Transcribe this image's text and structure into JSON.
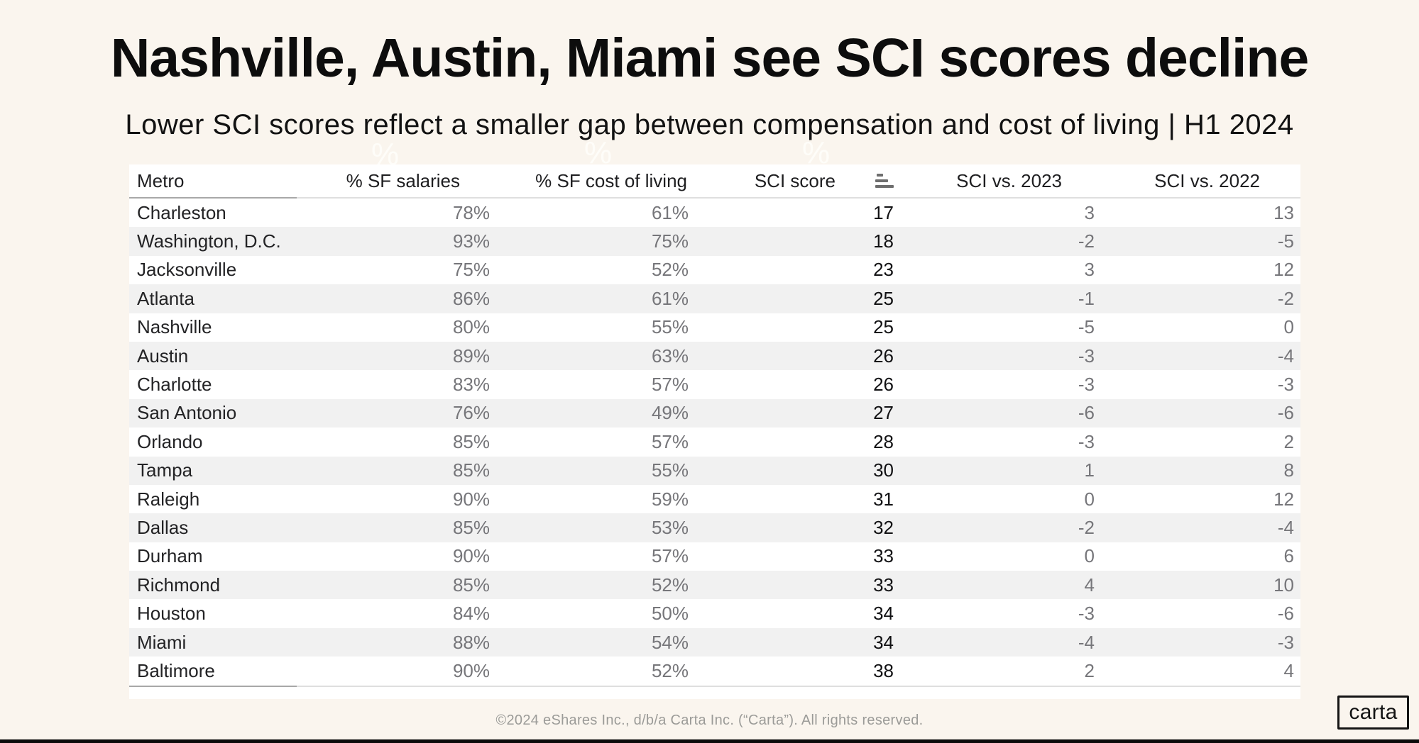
{
  "slide": {
    "title": "Nashville, Austin, Miami see SCI scores decline",
    "subtitle": "Lower SCI scores reflect a smaller gap between compensation and cost of living | H1 2024",
    "footer": "©2024 eShares Inc., d/b/a Carta Inc. (“Carta”). All rights reserved.",
    "logo_text": "carta",
    "watermarks": [
      "%",
      "%",
      "%"
    ]
  },
  "colors": {
    "background": "#FAF5EE",
    "table_background": "#FFFFFF",
    "row_stripe": "#F1F1F1",
    "text_dark": "#232325",
    "text_gray": "#76767A",
    "footer_gray": "#9B9B98",
    "divider_dark": "#A8A8A8",
    "divider_light": "#DFDFDF",
    "sort_icon": "#6E6E6E",
    "bottom_bar": "#0A0A0A"
  },
  "chart_data": {
    "type": "table",
    "title": "Nashville, Austin, Miami see SCI scores decline",
    "subtitle": "Lower SCI scores reflect a smaller gap between compensation and cost of living | H1 2024",
    "columns": [
      "Metro",
      "% SF salaries",
      "% SF cost of living",
      "SCI score",
      "SCI vs. 2023",
      "SCI vs. 2022"
    ],
    "column_keys": [
      "metro",
      "sf_salaries",
      "sf_cost_of_living",
      "sci_score",
      "sci_vs_2023",
      "sci_vs_2022"
    ],
    "sort": {
      "column": "SCI score",
      "direction": "ascending"
    },
    "rows": [
      {
        "metro": "Charleston",
        "sf_salaries": "78%",
        "sf_cost_of_living": "61%",
        "sci_score": 17,
        "sci_vs_2023": 3,
        "sci_vs_2022": 13
      },
      {
        "metro": "Washington, D.C.",
        "sf_salaries": "93%",
        "sf_cost_of_living": "75%",
        "sci_score": 18,
        "sci_vs_2023": -2,
        "sci_vs_2022": -5
      },
      {
        "metro": "Jacksonville",
        "sf_salaries": "75%",
        "sf_cost_of_living": "52%",
        "sci_score": 23,
        "sci_vs_2023": 3,
        "sci_vs_2022": 12
      },
      {
        "metro": "Atlanta",
        "sf_salaries": "86%",
        "sf_cost_of_living": "61%",
        "sci_score": 25,
        "sci_vs_2023": -1,
        "sci_vs_2022": -2
      },
      {
        "metro": "Nashville",
        "sf_salaries": "80%",
        "sf_cost_of_living": "55%",
        "sci_score": 25,
        "sci_vs_2023": -5,
        "sci_vs_2022": 0
      },
      {
        "metro": "Austin",
        "sf_salaries": "89%",
        "sf_cost_of_living": "63%",
        "sci_score": 26,
        "sci_vs_2023": -3,
        "sci_vs_2022": -4
      },
      {
        "metro": "Charlotte",
        "sf_salaries": "83%",
        "sf_cost_of_living": "57%",
        "sci_score": 26,
        "sci_vs_2023": -3,
        "sci_vs_2022": -3
      },
      {
        "metro": "San Antonio",
        "sf_salaries": "76%",
        "sf_cost_of_living": "49%",
        "sci_score": 27,
        "sci_vs_2023": -6,
        "sci_vs_2022": -6
      },
      {
        "metro": "Orlando",
        "sf_salaries": "85%",
        "sf_cost_of_living": "57%",
        "sci_score": 28,
        "sci_vs_2023": -3,
        "sci_vs_2022": 2
      },
      {
        "metro": "Tampa",
        "sf_salaries": "85%",
        "sf_cost_of_living": "55%",
        "sci_score": 30,
        "sci_vs_2023": 1,
        "sci_vs_2022": 8
      },
      {
        "metro": "Raleigh",
        "sf_salaries": "90%",
        "sf_cost_of_living": "59%",
        "sci_score": 31,
        "sci_vs_2023": 0,
        "sci_vs_2022": 12
      },
      {
        "metro": "Dallas",
        "sf_salaries": "85%",
        "sf_cost_of_living": "53%",
        "sci_score": 32,
        "sci_vs_2023": -2,
        "sci_vs_2022": -4
      },
      {
        "metro": "Durham",
        "sf_salaries": "90%",
        "sf_cost_of_living": "57%",
        "sci_score": 33,
        "sci_vs_2023": 0,
        "sci_vs_2022": 6
      },
      {
        "metro": "Richmond",
        "sf_salaries": "85%",
        "sf_cost_of_living": "52%",
        "sci_score": 33,
        "sci_vs_2023": 4,
        "sci_vs_2022": 10
      },
      {
        "metro": "Houston",
        "sf_salaries": "84%",
        "sf_cost_of_living": "50%",
        "sci_score": 34,
        "sci_vs_2023": -3,
        "sci_vs_2022": -6
      },
      {
        "metro": "Miami",
        "sf_salaries": "88%",
        "sf_cost_of_living": "54%",
        "sci_score": 34,
        "sci_vs_2023": -4,
        "sci_vs_2022": -3
      },
      {
        "metro": "Baltimore",
        "sf_salaries": "90%",
        "sf_cost_of_living": "52%",
        "sci_score": 38,
        "sci_vs_2023": 2,
        "sci_vs_2022": 4
      }
    ]
  }
}
